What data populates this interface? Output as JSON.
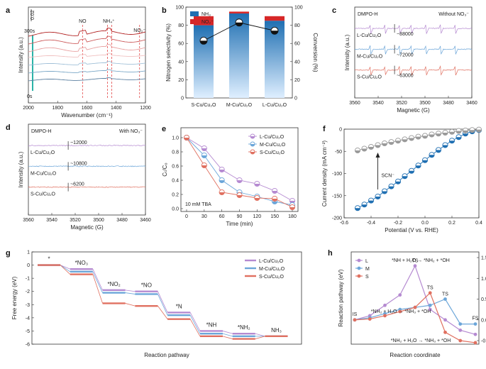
{
  "figure": {
    "panels": [
      "a",
      "b",
      "c",
      "d",
      "e",
      "f",
      "g",
      "h"
    ]
  },
  "chart_data": [
    {
      "id": "a",
      "type": "line",
      "title": "",
      "xlabel": "Wavenumber (cm⁻¹)",
      "ylabel": "Intensity (a.u.)",
      "xlim": [
        2000,
        1200
      ],
      "xticks": [
        "2000",
        "1800",
        "1600",
        "1400",
        "1200"
      ],
      "scalebar": "0.02",
      "time_labels": [
        "300s",
        "0s"
      ],
      "peak_labels": [
        "NO",
        "NH₄⁺",
        "NO₂⁻"
      ],
      "peaks": [
        1630,
        1460,
        1430,
        1240
      ],
      "series_colors": [
        "#b22222",
        "#cd5c5c",
        "#e8a0a0",
        "#f0c0c0",
        "#a0c0d8",
        "#7aa7c7",
        "#5a7fa0"
      ]
    },
    {
      "id": "b",
      "type": "bar",
      "categories": [
        "S-Cu/Cu₂O",
        "M-Cu/Cu₂O",
        "L-Cu/Cu₂O"
      ],
      "series": [
        {
          "name": "NH₃",
          "values": [
            80,
            93,
            85
          ]
        },
        {
          "name": "NO₂⁻",
          "values": [
            10,
            2,
            5
          ]
        }
      ],
      "conversion": [
        63,
        83,
        74
      ],
      "ylabel": "Nitrogen selectivity (%)",
      "y2label": "Conversion (%)",
      "ylim": [
        0,
        100
      ],
      "y2lim": [
        0,
        100
      ],
      "yticks": [
        "0",
        "20",
        "40",
        "60",
        "80",
        "100"
      ],
      "legend": [
        "NH₃",
        "NO₂⁻"
      ]
    },
    {
      "id": "c",
      "type": "line",
      "title_left": "DMPO-H",
      "title_right": "Without NO₃⁻",
      "xlabel": "Magnetic (G)",
      "ylabel": "Intensity (a.u.)",
      "xticks": [
        "3560",
        "3540",
        "3520",
        "3500",
        "3480",
        "3460"
      ],
      "series": [
        {
          "name": "L-Cu/Cu₂O",
          "value": "~88000",
          "color": "#b58ad1"
        },
        {
          "name": "M-Cu/Cu₂O",
          "value": "~72000",
          "color": "#6ca6d9"
        },
        {
          "name": "S-Cu/Cu₂O",
          "value": "~63000",
          "color": "#e07060"
        }
      ]
    },
    {
      "id": "d",
      "type": "line",
      "title_left": "DMPO-H",
      "title_right": "With NO₃⁻",
      "xlabel": "Magnetic (G)",
      "ylabel": "Intensity (a.u.)",
      "xticks": [
        "3560",
        "3540",
        "3520",
        "3500",
        "3480",
        "3460"
      ],
      "series": [
        {
          "name": "L-Cu/Cu₂O",
          "value": "~12000",
          "color": "#b58ad1"
        },
        {
          "name": "M-Cu/Cu₂O",
          "value": "~10800",
          "color": "#6ca6d9"
        },
        {
          "name": "S-Cu/Cu₂O",
          "value": "~6200",
          "color": "#e07060"
        }
      ]
    },
    {
      "id": "e",
      "type": "line",
      "xlabel": "Time (min)",
      "ylabel": "Cₜ/C₀",
      "annotation": "10 mM TBA",
      "x": [
        0,
        30,
        60,
        90,
        120,
        150,
        180
      ],
      "xticks": [
        "0",
        "30",
        "60",
        "90",
        "120",
        "150",
        "180"
      ],
      "yticks": [
        "0.0",
        "0.2",
        "0.4",
        "0.6",
        "0.8",
        "1.0"
      ],
      "ylim": [
        0,
        1.1
      ],
      "series": [
        {
          "name": "L-Cu/Cu₂O",
          "values": [
            1.0,
            0.85,
            0.55,
            0.4,
            0.35,
            0.25,
            0.11
          ],
          "color": "#b58ad1"
        },
        {
          "name": "M-Cu/Cu₂O",
          "values": [
            1.0,
            0.75,
            0.4,
            0.23,
            0.17,
            0.1,
            0.05
          ],
          "color": "#6ca6d9"
        },
        {
          "name": "S-Cu/Cu₂O",
          "values": [
            1.0,
            0.61,
            0.23,
            0.19,
            0.15,
            0.14,
            0.02
          ],
          "color": "#e07060"
        }
      ]
    },
    {
      "id": "f",
      "type": "line",
      "xlabel": "Potential (V vs. RHE)",
      "ylabel": "Current density (mA cm⁻²)",
      "annotation": "SCN⁻",
      "xlim": [
        -0.6,
        0.4
      ],
      "ylim": [
        -200,
        0
      ],
      "xticks": [
        "-0.6",
        "-0.4",
        "-0.2",
        "0.0",
        "0.2",
        "0.4"
      ],
      "yticks": [
        "-200",
        "-150",
        "-100",
        "-50",
        "0"
      ],
      "series": [
        {
          "name": "without SCN⁻",
          "color": "#1f6fb2",
          "x": [
            -0.5,
            -0.45,
            -0.4,
            -0.35,
            -0.3,
            -0.25,
            -0.2,
            -0.15,
            -0.1,
            -0.05,
            0.0,
            0.05,
            0.1,
            0.15,
            0.2,
            0.25,
            0.3,
            0.35,
            0.4
          ],
          "y": [
            -178,
            -170,
            -161,
            -152,
            -140,
            -129,
            -118,
            -106,
            -94,
            -82,
            -70,
            -58,
            -47,
            -36,
            -26,
            -18,
            -10,
            -5,
            -2
          ]
        },
        {
          "name": "with SCN⁻",
          "color": "#9a9a9a",
          "x": [
            -0.5,
            -0.45,
            -0.4,
            -0.35,
            -0.3,
            -0.25,
            -0.2,
            -0.15,
            -0.1,
            -0.05,
            0.0,
            0.05,
            0.1,
            0.15,
            0.2,
            0.25,
            0.3,
            0.35,
            0.4
          ],
          "y": [
            -48,
            -44,
            -40,
            -36,
            -32,
            -29,
            -26,
            -23,
            -20,
            -17,
            -15,
            -12,
            -10,
            -8,
            -6,
            -4,
            -3,
            -2,
            -1
          ]
        }
      ]
    },
    {
      "id": "g",
      "type": "line",
      "xlabel": "Reaction pathway",
      "ylabel": "Free energy (eV)",
      "ylim": [
        -6,
        1
      ],
      "yticks": [
        "-6",
        "-5",
        "-4",
        "-3",
        "-2",
        "-1",
        "0",
        "1"
      ],
      "steps": [
        "*",
        "*NO₃",
        "*NO₂",
        "*NO",
        "*N",
        "*NH",
        "*NH₂",
        "NH₃"
      ],
      "series": [
        {
          "name": "L-Cu/Cu₂O",
          "values": [
            0,
            -0.3,
            -1.9,
            -2.0,
            -3.6,
            -5.0,
            -5.2,
            -5.4
          ],
          "color": "#b58ad1"
        },
        {
          "name": "M-Cu/Cu₂O",
          "values": [
            0,
            -0.5,
            -2.1,
            -2.2,
            -3.8,
            -5.2,
            -5.4,
            -5.4
          ],
          "color": "#6ca6d9"
        },
        {
          "name": "S-Cu/Cu₂O",
          "values": [
            0,
            -0.7,
            -2.9,
            -3.1,
            -4.1,
            -5.4,
            -5.6,
            -5.4
          ],
          "color": "#e07060"
        }
      ]
    },
    {
      "id": "h",
      "type": "line",
      "xlabel": "Reaction coordinate",
      "ylabel": "Reaction pathway (eV)",
      "ylim": [
        -0.6,
        1.5
      ],
      "yticks": [
        "-0.5",
        "0.0",
        "0.5",
        "1.0",
        "1.5"
      ],
      "point_labels": [
        "IS",
        "TS",
        "TS",
        "TS",
        "FS"
      ],
      "reaction_labels": [
        "*NH + H₂O → *NH₂ + *OH",
        "*NH₂ + H₂O → *NH₃ + *OH",
        "*NH₂ + H₂O → *NH₃ + *OH"
      ],
      "series": [
        {
          "name": "L",
          "x": [
            0,
            1,
            2,
            3,
            4,
            5,
            6,
            7,
            8
          ],
          "values": [
            0,
            0.1,
            0.35,
            0.6,
            1.3,
            0.25,
            0.0,
            -0.25,
            -0.35
          ],
          "color": "#b58ad1"
        },
        {
          "name": "M",
          "x": [
            0,
            1,
            2,
            3,
            4,
            5,
            6,
            7,
            8
          ],
          "values": [
            0,
            0.05,
            0.15,
            0.25,
            0.3,
            0.35,
            0.5,
            -0.1,
            -0.1
          ],
          "color": "#6ca6d9"
        },
        {
          "name": "S",
          "x": [
            0,
            1,
            2,
            3,
            4,
            5,
            6,
            7,
            8
          ],
          "values": [
            0,
            0.02,
            0.1,
            0.2,
            0.3,
            0.65,
            -0.3,
            -0.5,
            -0.55
          ],
          "color": "#e07060"
        }
      ]
    }
  ]
}
